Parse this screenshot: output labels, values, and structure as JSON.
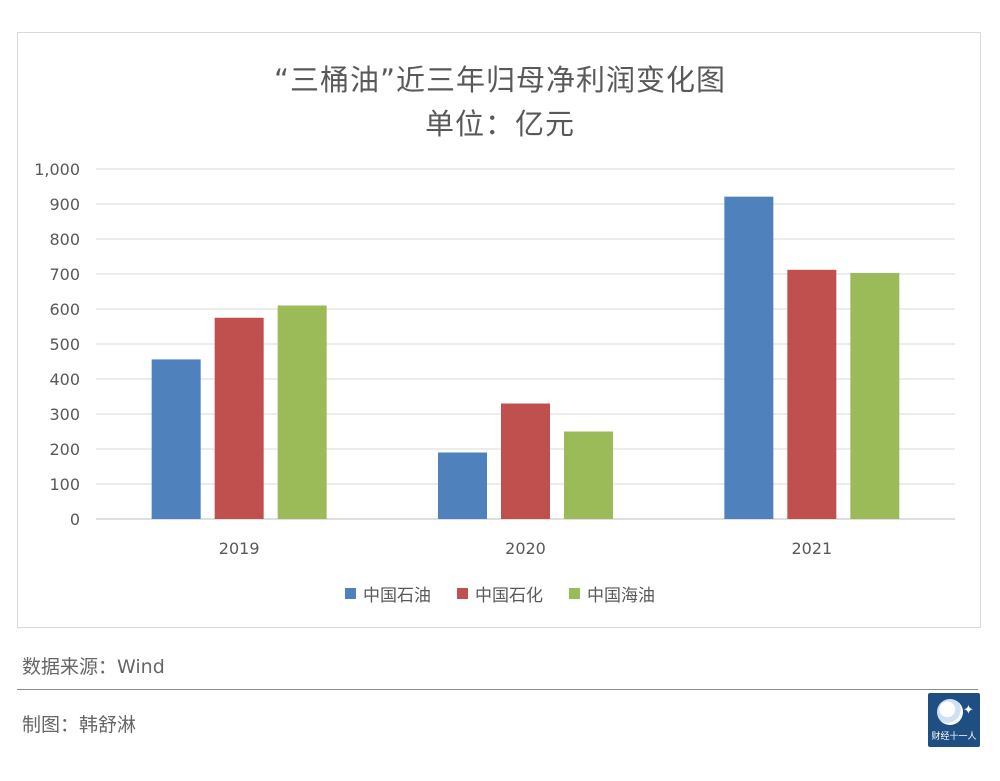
{
  "chart_data": {
    "type": "bar",
    "title": "“三桶油”近三年归母净利润变化图",
    "subtitle": "单位：亿元",
    "categories": [
      "2019",
      "2020",
      "2021"
    ],
    "series": [
      {
        "name": "中国石油",
        "values": [
          456,
          190,
          921
        ],
        "color": "#4f81bd"
      },
      {
        "name": "中国石化",
        "values": [
          575,
          330,
          712
        ],
        "color": "#c0504d"
      },
      {
        "name": "中国海油",
        "values": [
          610,
          250,
          703
        ],
        "color": "#9bbb59"
      }
    ],
    "ylim": [
      0,
      1000
    ],
    "yticks": [
      "0",
      "100",
      "200",
      "300",
      "400",
      "500",
      "600",
      "700",
      "800",
      "900",
      "1,000"
    ],
    "grid": true,
    "legend": "bottom"
  },
  "footer": {
    "source": "数据来源：Wind",
    "author": "制图：韩舒淋"
  },
  "brand": {
    "name": "财经十一人",
    "icon": "globe-runner-icon"
  }
}
